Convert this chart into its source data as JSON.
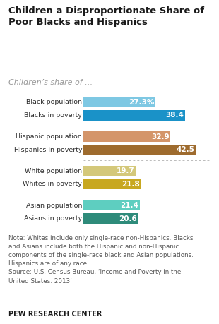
{
  "title": "Children a Disproportionate Share of\nPoor Blacks and Hispanics",
  "subtitle": "Children’s share of …",
  "categories": [
    "Black population",
    "Blacks in poverty",
    "Hispanic population",
    "Hispanics in poverty",
    "White population",
    "Whites in poverty",
    "Asian population",
    "Asians in poverty"
  ],
  "values": [
    27.3,
    38.4,
    32.9,
    42.5,
    19.7,
    21.8,
    21.4,
    20.6
  ],
  "labels": [
    "27.3%",
    "38.4",
    "32.9",
    "42.5",
    "19.7",
    "21.8",
    "21.4",
    "20.6"
  ],
  "colors": [
    "#7ec8e3",
    "#1a92c8",
    "#d4956a",
    "#9e6b2e",
    "#d4c87a",
    "#c8a820",
    "#5ecec0",
    "#2e8b7a"
  ],
  "note_line1": "Note: Whites include only single-race non-Hispanics. Blacks",
  "note_line2": "and Asians include both the Hispanic and non-Hispanic",
  "note_line3": "components of the single-race black and Asian populations.",
  "note_line4": "Hispanics are of any race.",
  "note_line5": "Source: U.S. Census Bureau, ‘Income and Poverty in the",
  "note_line6": "United States: 2013’",
  "source_label": "PEW RESEARCH CENTER",
  "xlim": [
    0,
    48
  ],
  "bg_color": "#ffffff",
  "title_color": "#1a1a1a",
  "subtitle_color": "#999999",
  "note_color": "#555555"
}
